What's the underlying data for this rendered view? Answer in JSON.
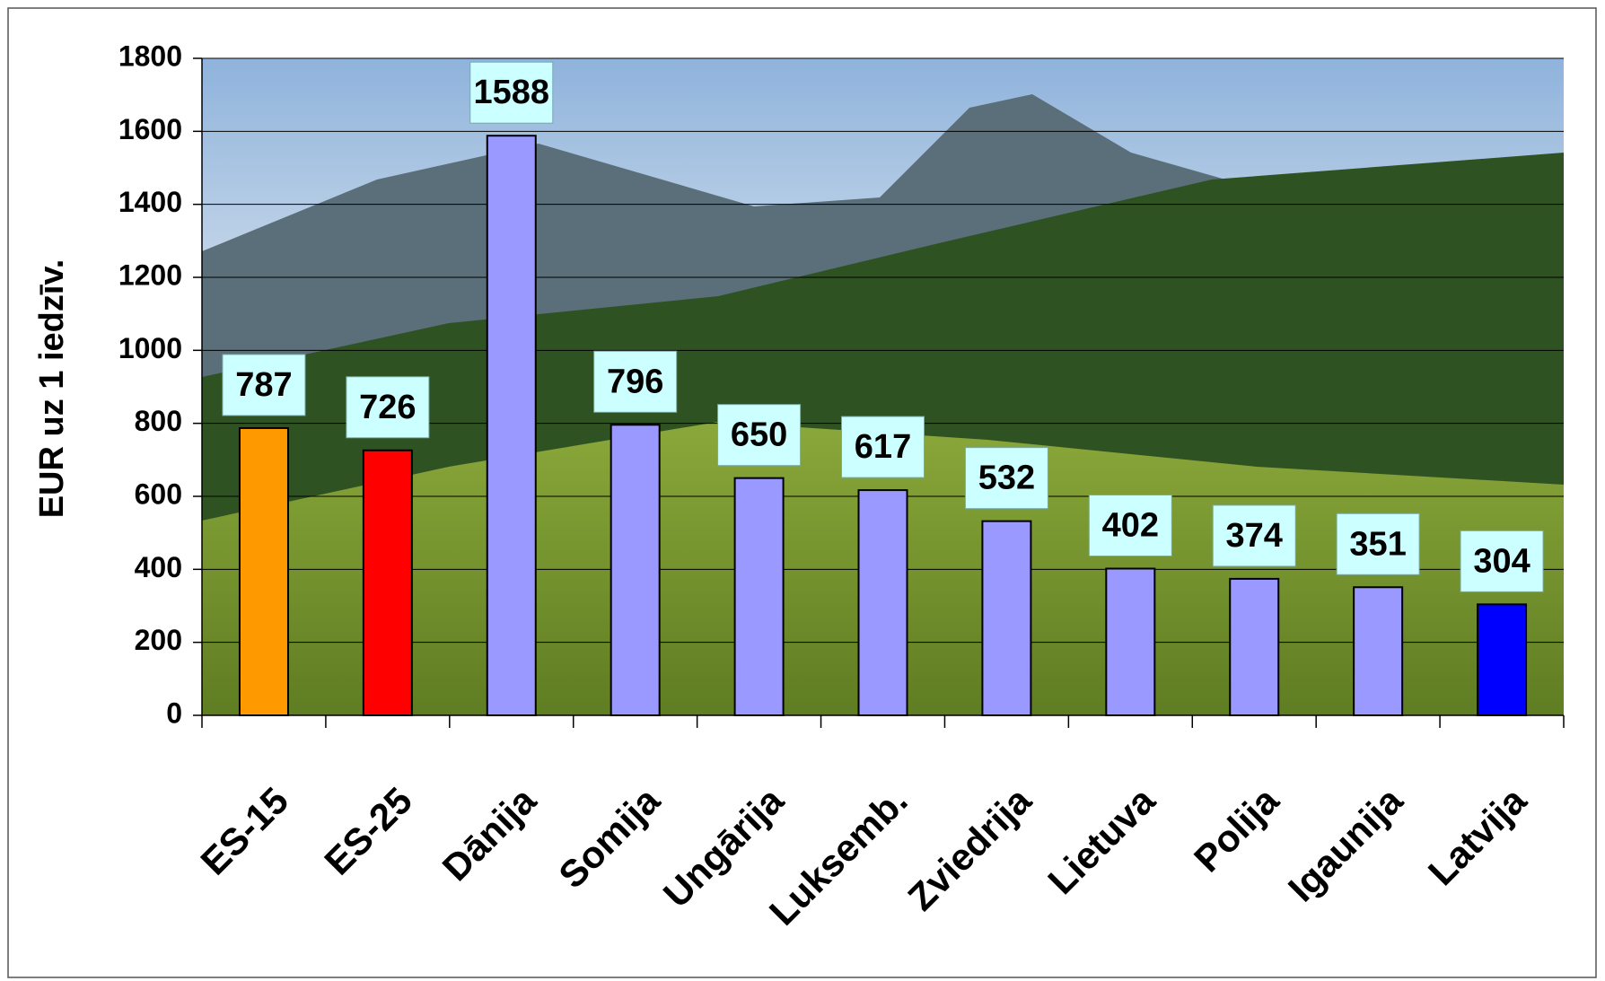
{
  "chart_data": {
    "type": "bar",
    "y_label": "EUR uz 1 iedzīv.",
    "categories": [
      "ES-15",
      "ES-25",
      "Dānija",
      "Somija",
      "Ungārija",
      "Luksemb.",
      "Zviedrija",
      "Lietuva",
      "Polija",
      "Igaunija",
      "Latvija"
    ],
    "values": [
      787,
      726,
      1588,
      796,
      650,
      617,
      532,
      402,
      374,
      351,
      304
    ],
    "colors": [
      "#ff9900",
      "#ff0000",
      "#9999ff",
      "#9999ff",
      "#9999ff",
      "#9999ff",
      "#9999ff",
      "#9999ff",
      "#9999ff",
      "#9999ff",
      "#0000ff"
    ],
    "ylim": [
      0,
      1800
    ],
    "yticks": [
      0,
      200,
      400,
      600,
      800,
      1000,
      1200,
      1400,
      1600,
      1800
    ],
    "grid": true
  }
}
